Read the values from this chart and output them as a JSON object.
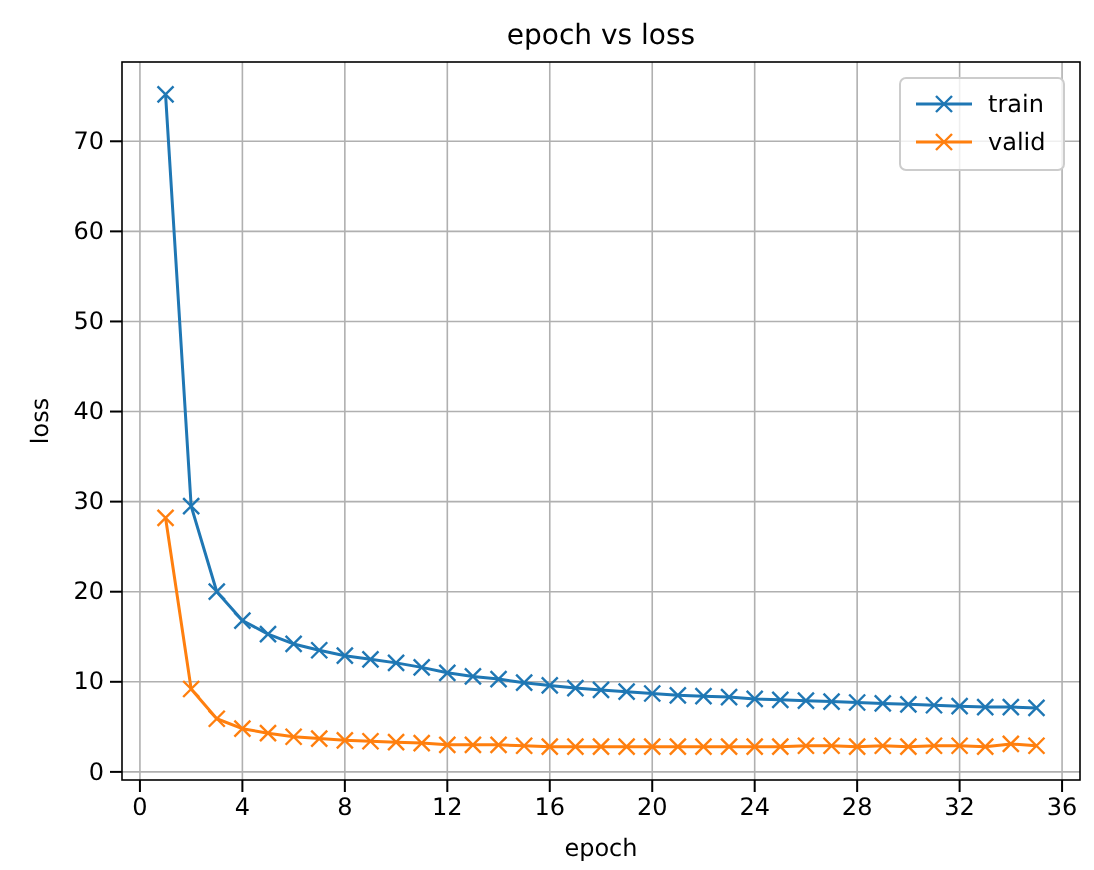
{
  "chart_data": {
    "type": "line",
    "title": "epoch vs loss",
    "xlabel": "epoch",
    "ylabel": "loss",
    "x": [
      1,
      2,
      3,
      4,
      5,
      6,
      7,
      8,
      9,
      10,
      11,
      12,
      13,
      14,
      15,
      16,
      17,
      18,
      19,
      20,
      21,
      22,
      23,
      24,
      25,
      26,
      27,
      28,
      29,
      30,
      31,
      32,
      33,
      34,
      35
    ],
    "series": [
      {
        "name": "train",
        "color": "#1f77b4",
        "values": [
          75.2,
          29.5,
          20,
          16.8,
          15.3,
          14.2,
          13.5,
          12.9,
          12.5,
          12.1,
          11.6,
          11.0,
          10.6,
          10.3,
          9.9,
          9.6,
          9.3,
          9.1,
          8.9,
          8.7,
          8.5,
          8.4,
          8.3,
          8.1,
          8.0,
          7.9,
          7.8,
          7.7,
          7.6,
          7.5,
          7.4,
          7.3,
          7.2,
          7.2,
          7.1
        ]
      },
      {
        "name": "valid",
        "color": "#ff7f0e",
        "values": [
          28.2,
          9.2,
          5.9,
          4.8,
          4.3,
          3.9,
          3.7,
          3.5,
          3.4,
          3.3,
          3.2,
          3.0,
          3.0,
          3.0,
          2.9,
          2.8,
          2.8,
          2.8,
          2.8,
          2.8,
          2.8,
          2.8,
          2.8,
          2.8,
          2.8,
          2.9,
          2.9,
          2.8,
          2.9,
          2.8,
          2.9,
          2.9,
          2.8,
          3.1,
          2.9
        ]
      }
    ],
    "xlim": [
      -0.7,
      36.7
    ],
    "xticks": [
      0,
      4,
      8,
      12,
      16,
      20,
      24,
      28,
      32,
      36
    ],
    "ylim": [
      -0.9,
      78.8
    ],
    "yticks": [
      0,
      10,
      20,
      30,
      40,
      50,
      60,
      70
    ],
    "grid": true,
    "legend": "top right",
    "marker": "cross",
    "line_style": "solid"
  }
}
